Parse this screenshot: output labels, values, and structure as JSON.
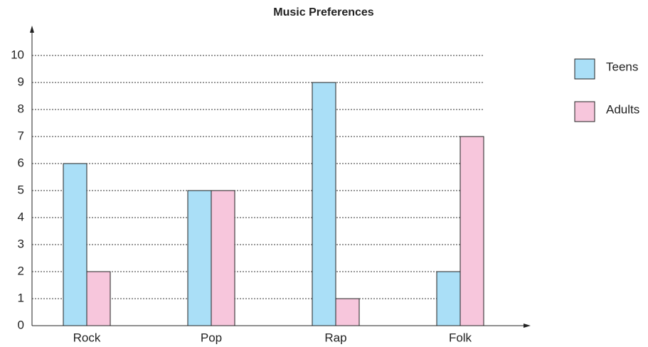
{
  "chart_data": {
    "type": "bar",
    "title": "Music Preferences",
    "categories": [
      "Rock",
      "Pop",
      "Rap",
      "Folk"
    ],
    "series": [
      {
        "name": "Teens",
        "color": "#aadff7",
        "values": [
          6,
          5,
          9,
          2
        ]
      },
      {
        "name": "Adults",
        "color": "#f7c6dc",
        "values": [
          2,
          5,
          1,
          7
        ]
      }
    ],
    "ylim": [
      0,
      10
    ],
    "yticks": [
      0,
      1,
      2,
      3,
      4,
      5,
      6,
      7,
      8,
      9,
      10
    ],
    "grid": true,
    "legend": "right"
  }
}
